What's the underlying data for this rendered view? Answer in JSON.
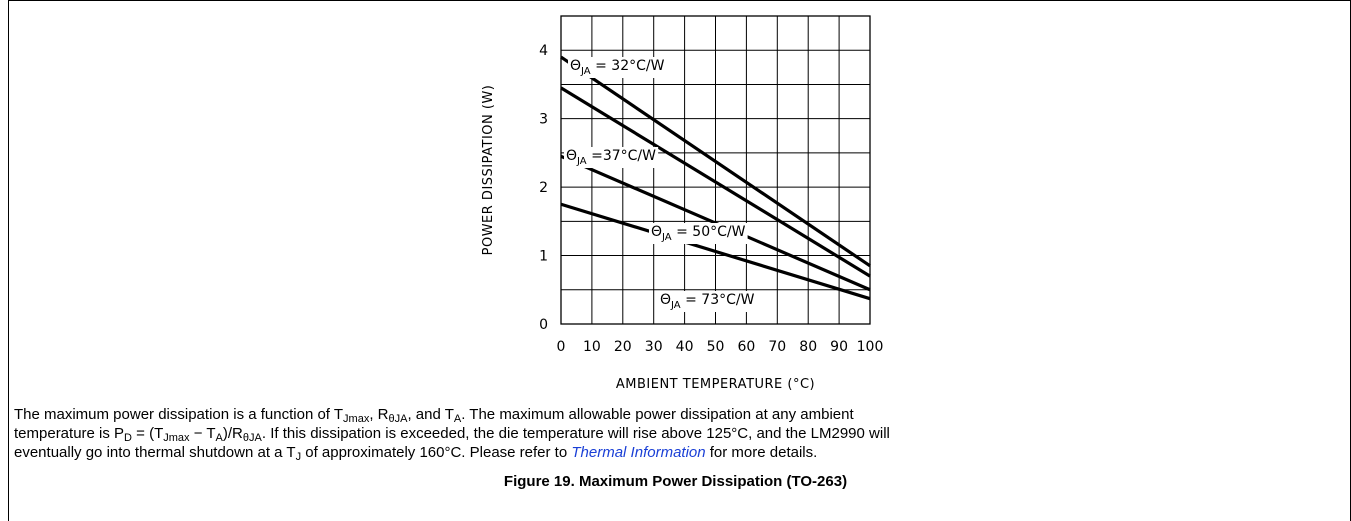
{
  "chart_data": {
    "type": "line",
    "title": "",
    "xlabel": "AMBIENT TEMPERATURE (°C)",
    "ylabel": "POWER DISSIPATION (W)",
    "xlim": [
      0,
      100
    ],
    "ylim": [
      0,
      4.5
    ],
    "x_ticks": [
      "0",
      "10",
      "20",
      "30",
      "40",
      "50",
      "60",
      "70",
      "80",
      "90",
      "100"
    ],
    "y_ticks": [
      "0",
      "1",
      "2",
      "3",
      "4"
    ],
    "grid": true,
    "series": [
      {
        "symbol": "Θ",
        "subscript": "JA",
        "label_rest": " = 32°C/W",
        "x": [
          0,
          100
        ],
        "y": [
          3.9,
          0.85
        ]
      },
      {
        "symbol": "Θ",
        "subscript": "JA",
        "label_rest": " =37°C/W",
        "x": [
          0,
          100
        ],
        "y": [
          3.45,
          0.7
        ]
      },
      {
        "symbol": "Θ",
        "subscript": "JA",
        "label_rest": " = 50°C/W",
        "x": [
          0,
          100
        ],
        "y": [
          2.45,
          0.5
        ]
      },
      {
        "symbol": "Θ",
        "subscript": "JA",
        "label_rest": " = 73°C/W",
        "x": [
          0,
          100
        ],
        "y": [
          1.75,
          0.37
        ]
      }
    ]
  },
  "description": {
    "line1_a": "The maximum power dissipation is a function of T",
    "line1_sub1": "Jmax",
    "line1_b": ", R",
    "line1_sub2": "θJA",
    "line1_c": ", and T",
    "line1_sub3": "A",
    "line1_d": ". The maximum allowable power dissipation at any ambient",
    "line2_a": "temperature is P",
    "line2_sub1": "D",
    "line2_b": " = (T",
    "line2_sub2": "Jmax",
    "line2_c": " − T",
    "line2_sub3": "A",
    "line2_d": ")/R",
    "line2_sub4": "θJA",
    "line2_e": ". If this dissipation is exceeded, the die temperature will rise above 125°C, and the LM2990 will",
    "line3_a": "eventually go into thermal shutdown at a T",
    "line3_sub1": "J",
    "line3_b": " of approximately 160°C. Please refer to ",
    "link": "Thermal Information",
    "line3_c": " for more details."
  },
  "caption": "Figure 19. Maximum Power Dissipation (TO-263)"
}
